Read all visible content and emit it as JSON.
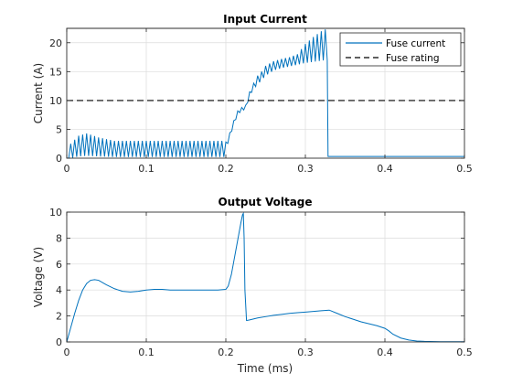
{
  "chart_data": [
    {
      "type": "line",
      "title": "Input Current",
      "xlabel": "",
      "ylabel": "Current (A)",
      "xlim": [
        0,
        0.5
      ],
      "ylim": [
        0,
        22.5
      ],
      "xticks": [
        0,
        0.1,
        0.2,
        0.3,
        0.4,
        0.5
      ],
      "yticks": [
        0,
        5,
        10,
        15,
        20
      ],
      "grid": true,
      "legend": "top-right",
      "series": [
        {
          "name": "Fuse current",
          "style": "solid",
          "color": "#0072BD",
          "oscillating": true,
          "envelope_x": [
            0,
            0.005,
            0.015,
            0.025,
            0.04,
            0.06,
            0.1,
            0.199,
            0.2,
            0.205,
            0.21,
            0.215,
            0.22,
            0.225,
            0.23,
            0.235,
            0.24,
            0.245,
            0.25,
            0.26,
            0.27,
            0.28,
            0.29,
            0.3,
            0.31,
            0.32,
            0.328,
            0.3285,
            0.33,
            0.5
          ],
          "upper": [
            0,
            2.5,
            3.9,
            4.3,
            3.6,
            3.0,
            3.0,
            3.0,
            2.8,
            4.4,
            6.5,
            8.2,
            8.8,
            9.2,
            11.5,
            13.0,
            14.3,
            15.0,
            16.0,
            16.8,
            17.2,
            17.5,
            18.0,
            19.8,
            21.0,
            22.0,
            22.5,
            22.5,
            0.3,
            0.3
          ],
          "lower": [
            0,
            0,
            0.3,
            0.4,
            0.3,
            0.2,
            0.2,
            0.2,
            1.5,
            3.6,
            5.8,
            7.6,
            8.2,
            8.5,
            10.8,
            12.0,
            12.8,
            13.5,
            14.3,
            15.2,
            15.6,
            15.9,
            16.2,
            16.5,
            16.7,
            16.9,
            17.0,
            17.0,
            0.3,
            0.3
          ]
        },
        {
          "name": "Fuse rating",
          "style": "dashed",
          "color": "#000000",
          "x": [
            0,
            0.5
          ],
          "y": [
            10,
            10
          ]
        }
      ]
    },
    {
      "type": "line",
      "title": "Output Voltage",
      "xlabel": "Time (ms)",
      "ylabel": "Voltage (V)",
      "xlim": [
        0,
        0.5
      ],
      "ylim": [
        0,
        10
      ],
      "xticks": [
        0,
        0.1,
        0.2,
        0.3,
        0.4,
        0.5
      ],
      "yticks": [
        0,
        2,
        4,
        6,
        8,
        10
      ],
      "grid": true,
      "series": [
        {
          "color": "#0072BD",
          "x": [
            0,
            0.005,
            0.01,
            0.015,
            0.02,
            0.025,
            0.03,
            0.035,
            0.04,
            0.05,
            0.06,
            0.07,
            0.08,
            0.09,
            0.1,
            0.11,
            0.12,
            0.13,
            0.15,
            0.17,
            0.19,
            0.2,
            0.203,
            0.207,
            0.21,
            0.213,
            0.216,
            0.219,
            0.221,
            0.222,
            0.223,
            0.224,
            0.226,
            0.23,
            0.24,
            0.25,
            0.26,
            0.27,
            0.28,
            0.29,
            0.3,
            0.31,
            0.32,
            0.33,
            0.34,
            0.35,
            0.36,
            0.37,
            0.38,
            0.39,
            0.4,
            0.405,
            0.41,
            0.42,
            0.43,
            0.44,
            0.45,
            0.47,
            0.5
          ],
          "y": [
            0,
            1.1,
            2.2,
            3.2,
            4.0,
            4.5,
            4.75,
            4.8,
            4.75,
            4.4,
            4.1,
            3.9,
            3.85,
            3.9,
            4.0,
            4.05,
            4.05,
            4.0,
            4.0,
            4.0,
            4.0,
            4.05,
            4.3,
            5.2,
            6.2,
            7.2,
            8.2,
            9.2,
            9.8,
            9.9,
            8.0,
            4.0,
            1.65,
            1.7,
            1.85,
            1.95,
            2.05,
            2.12,
            2.2,
            2.25,
            2.3,
            2.35,
            2.4,
            2.45,
            2.2,
            1.95,
            1.75,
            1.55,
            1.4,
            1.25,
            1.05,
            0.85,
            0.6,
            0.3,
            0.15,
            0.07,
            0.04,
            0.02,
            0.02
          ]
        }
      ]
    }
  ]
}
